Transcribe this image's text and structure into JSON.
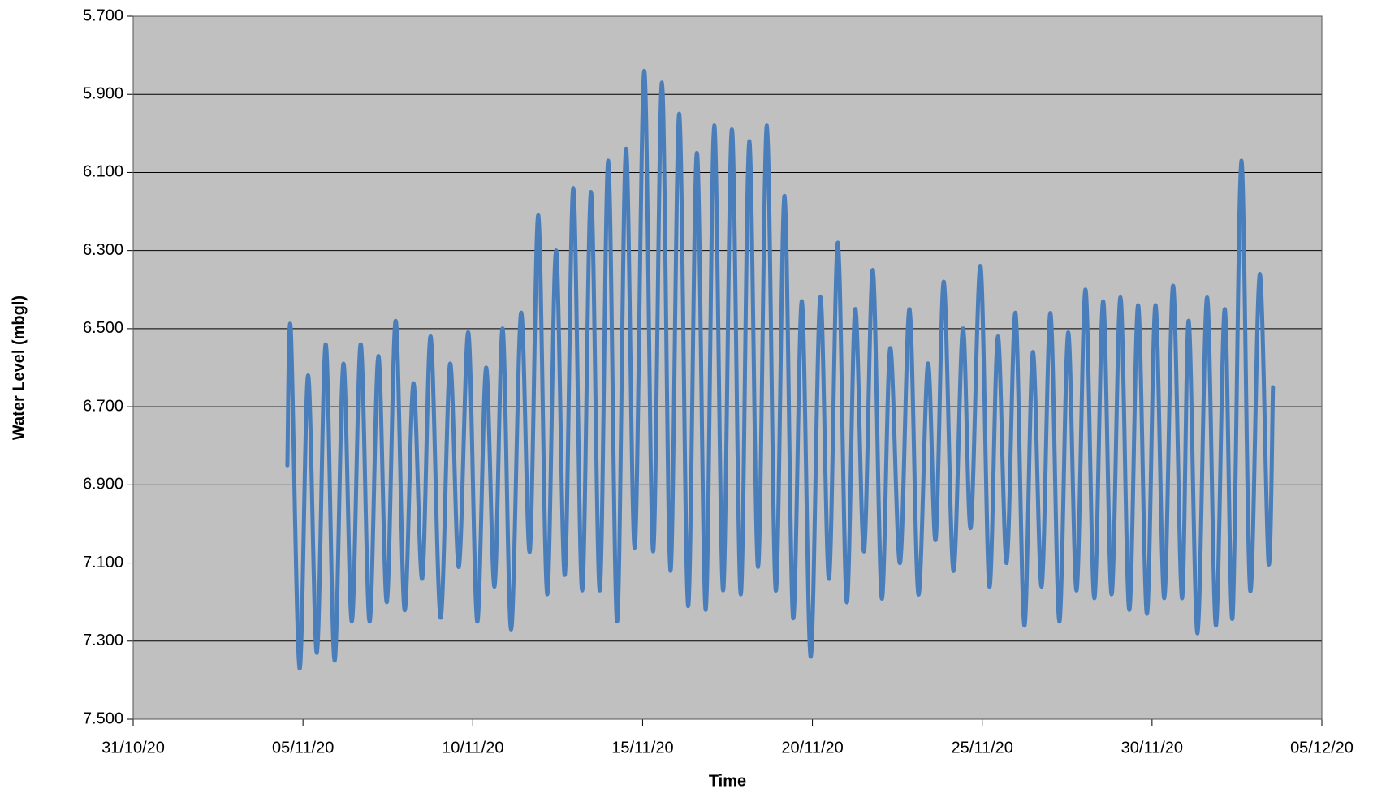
{
  "chart_data": {
    "type": "line",
    "xlabel": "Time",
    "ylabel": "Water Level (mbgl)",
    "xlim": [
      0,
      35
    ],
    "xticks": [
      {
        "value": 0,
        "label": "31/10/20"
      },
      {
        "value": 5,
        "label": "05/11/20"
      },
      {
        "value": 10,
        "label": "10/11/20"
      },
      {
        "value": 15,
        "label": "15/11/20"
      },
      {
        "value": 20,
        "label": "20/11/20"
      },
      {
        "value": 25,
        "label": "25/11/20"
      },
      {
        "value": 30,
        "label": "30/11/20"
      },
      {
        "value": 35,
        "label": "05/12/20"
      }
    ],
    "ylim": [
      7.5,
      5.7
    ],
    "yticks": [
      {
        "value": 5.7,
        "label": "5.700"
      },
      {
        "value": 5.9,
        "label": "5.900"
      },
      {
        "value": 6.1,
        "label": "6.100"
      },
      {
        "value": 6.3,
        "label": "6.300"
      },
      {
        "value": 6.5,
        "label": "6.500"
      },
      {
        "value": 6.7,
        "label": "6.700"
      },
      {
        "value": 6.9,
        "label": "6.900"
      },
      {
        "value": 7.1,
        "label": "7.100"
      },
      {
        "value": 7.3,
        "label": "7.300"
      },
      {
        "value": 7.5,
        "label": "7.500"
      }
    ],
    "grid": true,
    "background": "#c0c0c0",
    "color": "#4a7ebb",
    "x": [
      4.54,
      4.64,
      4.9,
      5.15,
      5.41,
      5.67,
      5.93,
      6.19,
      6.44,
      6.7,
      6.96,
      7.22,
      7.47,
      7.73,
      7.99,
      8.25,
      8.51,
      8.76,
      9.05,
      9.33,
      9.59,
      9.87,
      10.13,
      10.39,
      10.64,
      10.88,
      11.13,
      11.42,
      11.68,
      11.93,
      12.19,
      12.45,
      12.71,
      12.96,
      13.22,
      13.48,
      13.74,
      13.99,
      14.25,
      14.51,
      14.77,
      15.05,
      15.31,
      15.57,
      15.82,
      16.08,
      16.34,
      16.6,
      16.86,
      17.11,
      17.37,
      17.63,
      17.89,
      18.14,
      18.4,
      18.66,
      18.92,
      19.18,
      19.43,
      19.69,
      19.95,
      20.23,
      20.49,
      20.75,
      21.01,
      21.26,
      21.52,
      21.78,
      22.04,
      22.29,
      22.58,
      22.86,
      23.12,
      23.4,
      23.63,
      23.87,
      24.15,
      24.43,
      24.66,
      24.95,
      25.21,
      25.46,
      25.72,
      25.98,
      26.24,
      26.49,
      26.75,
      27.01,
      27.27,
      27.53,
      27.78,
      28.04,
      28.3,
      28.56,
      28.81,
      29.07,
      29.33,
      29.59,
      29.85,
      30.1,
      30.36,
      30.62,
      30.88,
      31.08,
      31.34,
      31.62,
      31.88,
      32.14,
      32.37,
      32.63,
      32.89,
      33.17,
      33.43,
      33.56
    ],
    "values": [
      6.85,
      6.5,
      7.37,
      6.62,
      7.33,
      6.54,
      7.35,
      6.59,
      7.25,
      6.54,
      7.25,
      6.57,
      7.2,
      6.48,
      7.22,
      6.64,
      7.14,
      6.52,
      7.24,
      6.59,
      7.11,
      6.51,
      7.25,
      6.6,
      7.16,
      6.5,
      7.27,
      6.46,
      7.07,
      6.21,
      7.18,
      6.3,
      7.13,
      6.14,
      7.17,
      6.15,
      7.17,
      6.07,
      7.25,
      6.04,
      7.06,
      5.84,
      7.07,
      5.87,
      7.12,
      5.95,
      7.21,
      6.05,
      7.22,
      5.98,
      7.17,
      5.99,
      7.18,
      6.02,
      7.11,
      5.98,
      7.17,
      6.16,
      7.24,
      6.43,
      7.34,
      6.42,
      7.14,
      6.28,
      7.2,
      6.45,
      7.07,
      6.35,
      7.19,
      6.55,
      7.1,
      6.45,
      7.18,
      6.59,
      7.04,
      6.38,
      7.12,
      6.5,
      7.01,
      6.34,
      7.16,
      6.52,
      7.1,
      6.46,
      7.26,
      6.56,
      7.16,
      6.46,
      7.25,
      6.51,
      7.17,
      6.4,
      7.19,
      6.43,
      7.18,
      6.42,
      7.22,
      6.44,
      7.23,
      6.44,
      7.19,
      6.39,
      7.19,
      6.48,
      7.28,
      6.42,
      7.26,
      6.45,
      7.24,
      6.07,
      7.17,
      6.36,
      7.1,
      6.65
    ]
  }
}
